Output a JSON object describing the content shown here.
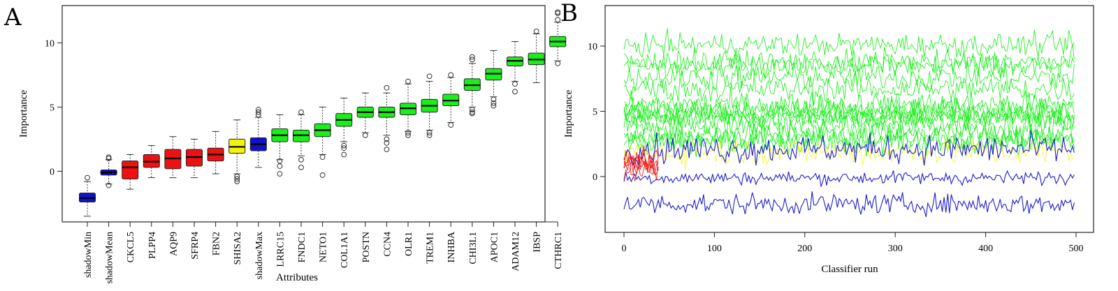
{
  "panels": {
    "a_label": "A",
    "b_label": "B"
  },
  "chart_data": [
    {
      "panel": "A",
      "type": "box",
      "xlabel": "Attributes",
      "ylabel": "Importance",
      "ylim": [
        -4,
        13
      ],
      "yticks": [
        0,
        5,
        10
      ],
      "colors": {
        "shadow": "#1010d0",
        "rejected": "#ee1111",
        "tentative": "#f4f40a",
        "confirmed": "#1aef1a"
      },
      "boxes": [
        {
          "name": "shadowMin",
          "status": "shadow",
          "min": -3.5,
          "q1": -2.4,
          "median": -2.1,
          "q3": -1.7,
          "max": -0.8,
          "outliers": [
            -0.5
          ]
        },
        {
          "name": "shadowMean",
          "status": "shadow",
          "min": -1.0,
          "q1": -0.3,
          "median": -0.1,
          "q3": 0.1,
          "max": 0.9,
          "outliers": [
            -1.1,
            1.0,
            1.1
          ]
        },
        {
          "name": "CKCL5",
          "status": "rejected",
          "min": -1.4,
          "q1": -0.6,
          "median": 0.3,
          "q3": 0.8,
          "max": 1.3,
          "outliers": []
        },
        {
          "name": "PLPP4",
          "status": "rejected",
          "min": -0.5,
          "q1": 0.3,
          "median": 0.75,
          "q3": 1.3,
          "max": 2.0,
          "outliers": []
        },
        {
          "name": "AQP9",
          "status": "rejected",
          "min": -0.5,
          "q1": 0.2,
          "median": 1.0,
          "q3": 1.7,
          "max": 2.7,
          "outliers": []
        },
        {
          "name": "SFRP4",
          "status": "rejected",
          "min": -0.5,
          "q1": 0.4,
          "median": 1.1,
          "q3": 1.7,
          "max": 2.5,
          "outliers": []
        },
        {
          "name": "FBN2",
          "status": "rejected",
          "min": -0.2,
          "q1": 0.8,
          "median": 1.3,
          "q3": 1.8,
          "max": 3.1,
          "outliers": []
        },
        {
          "name": "SHISA2",
          "status": "tentative",
          "min": -0.2,
          "q1": 1.4,
          "median": 1.9,
          "q3": 2.5,
          "max": 4.0,
          "outliers": [
            -0.4,
            -0.6,
            -0.8
          ]
        },
        {
          "name": "shadowMax",
          "status": "shadow",
          "min": 0.3,
          "q1": 1.6,
          "median": 2.1,
          "q3": 2.6,
          "max": 4.2,
          "outliers": [
            4.4,
            4.6,
            4.8
          ]
        },
        {
          "name": "LRRC15",
          "status": "confirmed",
          "min": 0.9,
          "q1": 2.3,
          "median": 2.8,
          "q3": 3.3,
          "max": 4.4,
          "outliers": [
            0.8,
            0.4,
            -0.2
          ]
        },
        {
          "name": "FNDC1",
          "status": "confirmed",
          "min": 1.2,
          "q1": 2.3,
          "median": 2.8,
          "q3": 3.2,
          "max": 4.4,
          "outliers": [
            0.9,
            0.3,
            4.6
          ]
        },
        {
          "name": "NETO1",
          "status": "confirmed",
          "min": 1.3,
          "q1": 2.7,
          "median": 3.2,
          "q3": 3.7,
          "max": 5.0,
          "outliers": [
            1.1,
            -0.3
          ]
        },
        {
          "name": "COL1A1",
          "status": "confirmed",
          "min": 2.3,
          "q1": 3.5,
          "median": 4.0,
          "q3": 4.5,
          "max": 5.7,
          "outliers": [
            2.0,
            1.8,
            1.3
          ]
        },
        {
          "name": "POSTN",
          "status": "confirmed",
          "min": 3.0,
          "q1": 4.2,
          "median": 4.6,
          "q3": 5.0,
          "max": 6.1,
          "outliers": [
            2.8
          ]
        },
        {
          "name": "CCN4",
          "status": "confirmed",
          "min": 2.8,
          "q1": 4.2,
          "median": 4.6,
          "q3": 5.0,
          "max": 6.1,
          "outliers": [
            2.5,
            2.2,
            1.7,
            6.5
          ]
        },
        {
          "name": "OLR1",
          "status": "confirmed",
          "min": 3.1,
          "q1": 4.4,
          "median": 4.9,
          "q3": 5.3,
          "max": 6.8,
          "outliers": [
            3.0,
            2.8,
            7.0
          ]
        },
        {
          "name": "TREM1",
          "status": "confirmed",
          "min": 3.2,
          "q1": 4.6,
          "median": 5.1,
          "q3": 5.6,
          "max": 7.0,
          "outliers": [
            3.0,
            2.8,
            7.4
          ]
        },
        {
          "name": "INHBA",
          "status": "confirmed",
          "min": 3.8,
          "q1": 5.1,
          "median": 5.5,
          "q3": 6.0,
          "max": 7.3,
          "outliers": [
            3.6,
            7.5
          ]
        },
        {
          "name": "CHI3L1",
          "status": "confirmed",
          "min": 5.0,
          "q1": 6.3,
          "median": 6.7,
          "q3": 7.2,
          "max": 8.4,
          "outliers": [
            4.8,
            4.6,
            4.5,
            8.7,
            8.9
          ]
        },
        {
          "name": "APOC1",
          "status": "confirmed",
          "min": 5.8,
          "q1": 7.1,
          "median": 7.6,
          "q3": 8.0,
          "max": 9.4,
          "outliers": [
            5.6,
            5.3,
            5.1
          ]
        },
        {
          "name": "ADAM12",
          "status": "confirmed",
          "min": 7.0,
          "q1": 8.2,
          "median": 8.6,
          "q3": 8.9,
          "max": 10.1,
          "outliers": [
            6.8,
            6.2
          ]
        },
        {
          "name": "IBSP",
          "status": "confirmed",
          "min": 6.9,
          "q1": 8.3,
          "median": 8.7,
          "q3": 9.2,
          "max": 10.7,
          "outliers": [
            10.9
          ]
        },
        {
          "name": "CTHRC1",
          "status": "confirmed",
          "min": 8.6,
          "q1": 9.7,
          "median": 10.1,
          "q3": 10.5,
          "max": 11.6,
          "outliers": [
            8.4,
            11.8,
            12.3,
            12.4
          ]
        }
      ]
    },
    {
      "panel": "B",
      "type": "line",
      "xlabel": "Classifier run",
      "ylabel": "Importance",
      "xlim": [
        0,
        500
      ],
      "ylim": [
        -4,
        13
      ],
      "xticks": [
        0,
        100,
        200,
        300,
        400,
        500
      ],
      "yticks": [
        0,
        5,
        10
      ],
      "series": [
        {
          "name": "shadowMin",
          "color": "#1010d0",
          "mean": -2.1,
          "sd": 0.55,
          "runs": 500
        },
        {
          "name": "shadowMean",
          "color": "#1010d0",
          "mean": -0.1,
          "sd": 0.35,
          "runs": 500
        },
        {
          "name": "shadowMax",
          "color": "#1010d0",
          "mean": 2.1,
          "sd": 0.75,
          "runs": 500
        },
        {
          "name": "SHISA2",
          "color": "#f4f40a",
          "mean": 1.9,
          "sd": 0.75,
          "runs": 500
        },
        {
          "name": "CKCL5",
          "color": "#ee1111",
          "mean": 0.3,
          "sd": 0.8,
          "runs": 40
        },
        {
          "name": "PLPP4",
          "color": "#ee1111",
          "mean": 0.75,
          "sd": 0.6,
          "runs": 40
        },
        {
          "name": "AQP9",
          "color": "#ee1111",
          "mean": 1.0,
          "sd": 0.7,
          "runs": 40
        },
        {
          "name": "SFRP4",
          "color": "#ee1111",
          "mean": 1.1,
          "sd": 0.6,
          "runs": 40
        },
        {
          "name": "FBN2",
          "color": "#ee1111",
          "mean": 1.3,
          "sd": 0.6,
          "runs": 40
        },
        {
          "name": "LRRC15",
          "color": "#1aef1a",
          "mean": 2.8,
          "sd": 0.7,
          "runs": 500
        },
        {
          "name": "FNDC1",
          "color": "#1aef1a",
          "mean": 2.8,
          "sd": 0.7,
          "runs": 500
        },
        {
          "name": "NETO1",
          "color": "#1aef1a",
          "mean": 3.2,
          "sd": 0.7,
          "runs": 500
        },
        {
          "name": "COL1A1",
          "color": "#1aef1a",
          "mean": 4.0,
          "sd": 0.7,
          "runs": 500
        },
        {
          "name": "POSTN",
          "color": "#1aef1a",
          "mean": 4.6,
          "sd": 0.6,
          "runs": 500
        },
        {
          "name": "CCN4",
          "color": "#1aef1a",
          "mean": 4.6,
          "sd": 0.6,
          "runs": 500
        },
        {
          "name": "OLR1",
          "color": "#1aef1a",
          "mean": 4.9,
          "sd": 0.7,
          "runs": 500
        },
        {
          "name": "TREM1",
          "color": "#1aef1a",
          "mean": 5.1,
          "sd": 0.7,
          "runs": 500
        },
        {
          "name": "INHBA",
          "color": "#1aef1a",
          "mean": 5.5,
          "sd": 0.7,
          "runs": 500
        },
        {
          "name": "CHI3L1",
          "color": "#1aef1a",
          "mean": 6.7,
          "sd": 0.7,
          "runs": 500
        },
        {
          "name": "APOC1",
          "color": "#1aef1a",
          "mean": 7.6,
          "sd": 0.7,
          "runs": 500
        },
        {
          "name": "ADAM12",
          "color": "#1aef1a",
          "mean": 8.6,
          "sd": 0.6,
          "runs": 500
        },
        {
          "name": "IBSP",
          "color": "#1aef1a",
          "mean": 8.7,
          "sd": 0.7,
          "runs": 500
        },
        {
          "name": "CTHRC1",
          "color": "#1aef1a",
          "mean": 10.1,
          "sd": 0.6,
          "runs": 500
        }
      ]
    }
  ]
}
